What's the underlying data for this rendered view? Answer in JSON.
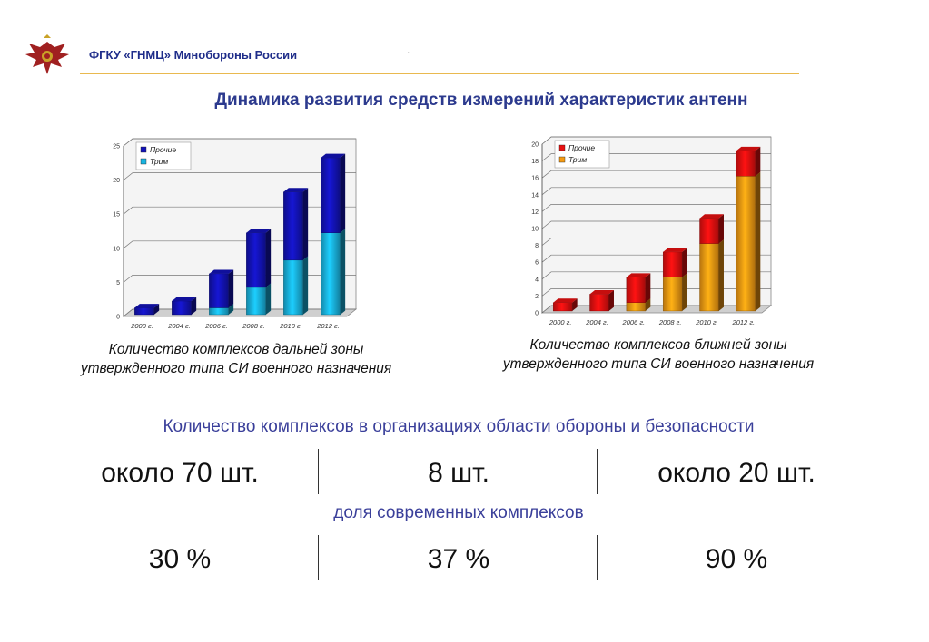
{
  "header": {
    "org": "ФГКУ «ГНМЦ» Минобороны России",
    "dot": "."
  },
  "title": "Динамика развития средств измерений характеристик антенн",
  "colors": {
    "left_other": "#1313b8",
    "left_trim": "#19b4e0",
    "right_other": "#e81010",
    "right_trim": "#f59a12"
  },
  "chart_data": [
    {
      "type": "bar",
      "stacked": true,
      "categories": [
        "2000 г.",
        "2004 г.",
        "2006 г.",
        "2008 г.",
        "2010 г.",
        "2012 г."
      ],
      "series": [
        {
          "name": "Трим",
          "values": [
            0,
            0,
            1,
            4,
            8,
            12
          ]
        },
        {
          "name": "Прочие",
          "values": [
            1,
            2,
            5,
            8,
            10,
            11
          ]
        }
      ],
      "ylim": [
        0,
        25
      ],
      "yticks": [
        0,
        5,
        10,
        15,
        20,
        25
      ],
      "legend": "top-left",
      "grid": true,
      "caption_line1": "Количество комплексов дальней зоны",
      "caption_line2": "утвержденного типа СИ военного назначения"
    },
    {
      "type": "bar",
      "stacked": true,
      "categories": [
        "2000 г.",
        "2004 г.",
        "2006 г.",
        "2008 г.",
        "2010 г.",
        "2012 г."
      ],
      "series": [
        {
          "name": "Трим",
          "values": [
            0,
            0,
            1,
            4,
            8,
            16
          ]
        },
        {
          "name": "Прочие",
          "values": [
            1,
            2,
            3,
            3,
            3,
            3
          ]
        }
      ],
      "ylim": [
        0,
        20
      ],
      "yticks": [
        0,
        2,
        4,
        6,
        8,
        10,
        12,
        14,
        16,
        18,
        20
      ],
      "legend": "top-left",
      "grid": true,
      "caption_line1": "Количество комплексов ближней зоны",
      "caption_line2": "утвержденного типа СИ военного назначения"
    }
  ],
  "stats": {
    "title": "Количество комплексов в организациях области обороны и безопасности",
    "counts": [
      "около 70 шт.",
      "8 шт.",
      "около 20 шт."
    ],
    "share_title": "доля современных комплексов",
    "shares": [
      "30 %",
      "37 %",
      "90 %"
    ]
  }
}
